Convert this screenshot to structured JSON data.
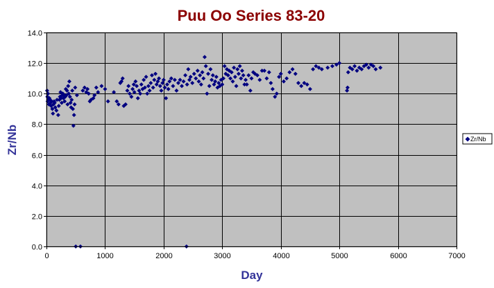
{
  "chart_data": {
    "type": "scatter",
    "title": "Puu Oo Series 83-20",
    "xlabel": "Day",
    "ylabel": "Zr/Nb",
    "xlim": [
      0,
      7000
    ],
    "ylim": [
      0,
      14
    ],
    "x_ticks": [
      "0",
      "1000",
      "2000",
      "3000",
      "4000",
      "5000",
      "6000",
      "7000"
    ],
    "y_ticks": [
      "0.0",
      "2.0",
      "4.0",
      "6.0",
      "8.0",
      "10.0",
      "12.0",
      "14.0"
    ],
    "grid": true,
    "legend_position": "right",
    "colors": {
      "title": "#8B0000",
      "axis_title": "#333399",
      "plot_background": "#C0C0C0",
      "marker": "#000080",
      "grid": "#000000"
    },
    "series": [
      {
        "name": "Zr/Nb",
        "marker": "diamond",
        "points": [
          [
            10,
            10.2
          ],
          [
            15,
            9.8
          ],
          [
            20,
            9.5
          ],
          [
            25,
            10.0
          ],
          [
            30,
            9.6
          ],
          [
            40,
            9.3
          ],
          [
            50,
            9.7
          ],
          [
            60,
            9.6
          ],
          [
            70,
            9.4
          ],
          [
            80,
            9.2
          ],
          [
            90,
            9.5
          ],
          [
            100,
            9.0
          ],
          [
            110,
            8.7
          ],
          [
            120,
            9.3
          ],
          [
            130,
            9.5
          ],
          [
            140,
            9.4
          ],
          [
            150,
            9.1
          ],
          [
            170,
            8.9
          ],
          [
            180,
            9.6
          ],
          [
            200,
            8.6
          ],
          [
            210,
            9.2
          ],
          [
            220,
            9.6
          ],
          [
            230,
            9.8
          ],
          [
            240,
            10.1
          ],
          [
            250,
            9.7
          ],
          [
            260,
            9.4
          ],
          [
            270,
            9.9
          ],
          [
            280,
            10.0
          ],
          [
            290,
            9.7
          ],
          [
            300,
            9.9
          ],
          [
            310,
            9.5
          ],
          [
            320,
            9.8
          ],
          [
            330,
            10.3
          ],
          [
            340,
            9.9
          ],
          [
            350,
            10.2
          ],
          [
            360,
            9.3
          ],
          [
            370,
            10.5
          ],
          [
            380,
            10.0
          ],
          [
            390,
            10.8
          ],
          [
            400,
            9.8
          ],
          [
            410,
            9.4
          ],
          [
            420,
            9.1
          ],
          [
            430,
            9.6
          ],
          [
            440,
            10.2
          ],
          [
            450,
            9.0
          ],
          [
            460,
            7.9
          ],
          [
            470,
            8.6
          ],
          [
            480,
            9.3
          ],
          [
            490,
            10.4
          ],
          [
            500,
            0.0
          ],
          [
            520,
            9.9
          ],
          [
            580,
            0.0
          ],
          [
            620,
            10.2
          ],
          [
            650,
            10.4
          ],
          [
            680,
            10.1
          ],
          [
            700,
            10.3
          ],
          [
            720,
            10.0
          ],
          [
            740,
            9.5
          ],
          [
            760,
            9.6
          ],
          [
            800,
            9.7
          ],
          [
            820,
            9.9
          ],
          [
            850,
            10.4
          ],
          [
            880,
            10.1
          ],
          [
            940,
            10.5
          ],
          [
            1000,
            10.3
          ],
          [
            1050,
            9.5
          ],
          [
            1150,
            10.1
          ],
          [
            1200,
            9.5
          ],
          [
            1230,
            9.3
          ],
          [
            1260,
            10.7
          ],
          [
            1280,
            10.8
          ],
          [
            1300,
            11.0
          ],
          [
            1320,
            9.2
          ],
          [
            1350,
            9.3
          ],
          [
            1380,
            10.2
          ],
          [
            1400,
            10.5
          ],
          [
            1420,
            10.0
          ],
          [
            1450,
            9.8
          ],
          [
            1470,
            10.3
          ],
          [
            1490,
            10.6
          ],
          [
            1500,
            10.1
          ],
          [
            1520,
            10.8
          ],
          [
            1540,
            10.5
          ],
          [
            1560,
            9.7
          ],
          [
            1580,
            10.2
          ],
          [
            1600,
            10.0
          ],
          [
            1620,
            10.6
          ],
          [
            1640,
            10.3
          ],
          [
            1660,
            10.9
          ],
          [
            1680,
            10.4
          ],
          [
            1700,
            11.1
          ],
          [
            1720,
            10.0
          ],
          [
            1740,
            10.5
          ],
          [
            1760,
            10.2
          ],
          [
            1780,
            10.7
          ],
          [
            1800,
            11.2
          ],
          [
            1820,
            10.4
          ],
          [
            1840,
            10.9
          ],
          [
            1860,
            11.3
          ],
          [
            1880,
            10.6
          ],
          [
            1900,
            10.8
          ],
          [
            1920,
            11.0
          ],
          [
            1940,
            10.5
          ],
          [
            1960,
            10.2
          ],
          [
            1980,
            10.7
          ],
          [
            2000,
            10.9
          ],
          [
            2020,
            10.4
          ],
          [
            2040,
            9.7
          ],
          [
            2060,
            10.6
          ],
          [
            2080,
            10.3
          ],
          [
            2100,
            10.8
          ],
          [
            2130,
            11.0
          ],
          [
            2160,
            10.5
          ],
          [
            2190,
            10.9
          ],
          [
            2220,
            10.2
          ],
          [
            2250,
            10.7
          ],
          [
            2280,
            10.9
          ],
          [
            2310,
            10.5
          ],
          [
            2340,
            10.8
          ],
          [
            2370,
            11.2
          ],
          [
            2390,
            0.0
          ],
          [
            2400,
            10.6
          ],
          [
            2420,
            11.6
          ],
          [
            2440,
            10.9
          ],
          [
            2460,
            11.1
          ],
          [
            2490,
            10.7
          ],
          [
            2520,
            11.3
          ],
          [
            2550,
            11.0
          ],
          [
            2580,
            11.5
          ],
          [
            2600,
            10.8
          ],
          [
            2620,
            11.2
          ],
          [
            2640,
            10.6
          ],
          [
            2660,
            11.4
          ],
          [
            2680,
            11.0
          ],
          [
            2700,
            12.4
          ],
          [
            2720,
            11.8
          ],
          [
            2740,
            10.0
          ],
          [
            2760,
            11.3
          ],
          [
            2780,
            10.5
          ],
          [
            2800,
            11.6
          ],
          [
            2820,
            10.9
          ],
          [
            2840,
            11.2
          ],
          [
            2860,
            10.6
          ],
          [
            2880,
            10.8
          ],
          [
            2900,
            11.1
          ],
          [
            2920,
            10.4
          ],
          [
            2940,
            10.7
          ],
          [
            2960,
            10.5
          ],
          [
            2980,
            10.9
          ],
          [
            3000,
            10.6
          ],
          [
            3020,
            11.0
          ],
          [
            3040,
            11.8
          ],
          [
            3060,
            11.3
          ],
          [
            3080,
            11.6
          ],
          [
            3100,
            11.2
          ],
          [
            3120,
            11.5
          ],
          [
            3140,
            11.0
          ],
          [
            3160,
            11.4
          ],
          [
            3180,
            10.8
          ],
          [
            3200,
            11.7
          ],
          [
            3220,
            11.1
          ],
          [
            3240,
            10.5
          ],
          [
            3260,
            11.6
          ],
          [
            3280,
            11.3
          ],
          [
            3300,
            11.8
          ],
          [
            3320,
            11.0
          ],
          [
            3340,
            11.5
          ],
          [
            3360,
            11.2
          ],
          [
            3380,
            10.6
          ],
          [
            3400,
            10.9
          ],
          [
            3420,
            10.6
          ],
          [
            3450,
            11.2
          ],
          [
            3480,
            10.2
          ],
          [
            3500,
            11.0
          ],
          [
            3530,
            11.4
          ],
          [
            3560,
            11.3
          ],
          [
            3600,
            11.2
          ],
          [
            3640,
            10.9
          ],
          [
            3680,
            11.5
          ],
          [
            3720,
            11.5
          ],
          [
            3760,
            11.0
          ],
          [
            3800,
            11.4
          ],
          [
            3830,
            10.7
          ],
          [
            3860,
            10.3
          ],
          [
            3900,
            9.8
          ],
          [
            3930,
            10.0
          ],
          [
            3970,
            11.1
          ],
          [
            4000,
            11.3
          ],
          [
            4050,
            10.8
          ],
          [
            4100,
            11.0
          ],
          [
            4150,
            11.4
          ],
          [
            4200,
            11.6
          ],
          [
            4250,
            11.3
          ],
          [
            4300,
            10.7
          ],
          [
            4350,
            10.5
          ],
          [
            4400,
            10.7
          ],
          [
            4450,
            10.6
          ],
          [
            4500,
            10.3
          ],
          [
            4550,
            11.6
          ],
          [
            4600,
            11.8
          ],
          [
            4650,
            11.7
          ],
          [
            4700,
            11.6
          ],
          [
            4800,
            11.7
          ],
          [
            4880,
            11.8
          ],
          [
            4950,
            11.9
          ],
          [
            5000,
            12.0
          ],
          [
            5130,
            10.2
          ],
          [
            5140,
            10.4
          ],
          [
            5150,
            11.4
          ],
          [
            5180,
            11.7
          ],
          [
            5220,
            11.6
          ],
          [
            5260,
            11.8
          ],
          [
            5300,
            11.5
          ],
          [
            5340,
            11.7
          ],
          [
            5380,
            11.6
          ],
          [
            5420,
            11.8
          ],
          [
            5460,
            11.9
          ],
          [
            5500,
            11.7
          ],
          [
            5540,
            11.9
          ],
          [
            5580,
            11.8
          ],
          [
            5620,
            11.6
          ],
          [
            5700,
            11.7
          ]
        ]
      }
    ]
  }
}
